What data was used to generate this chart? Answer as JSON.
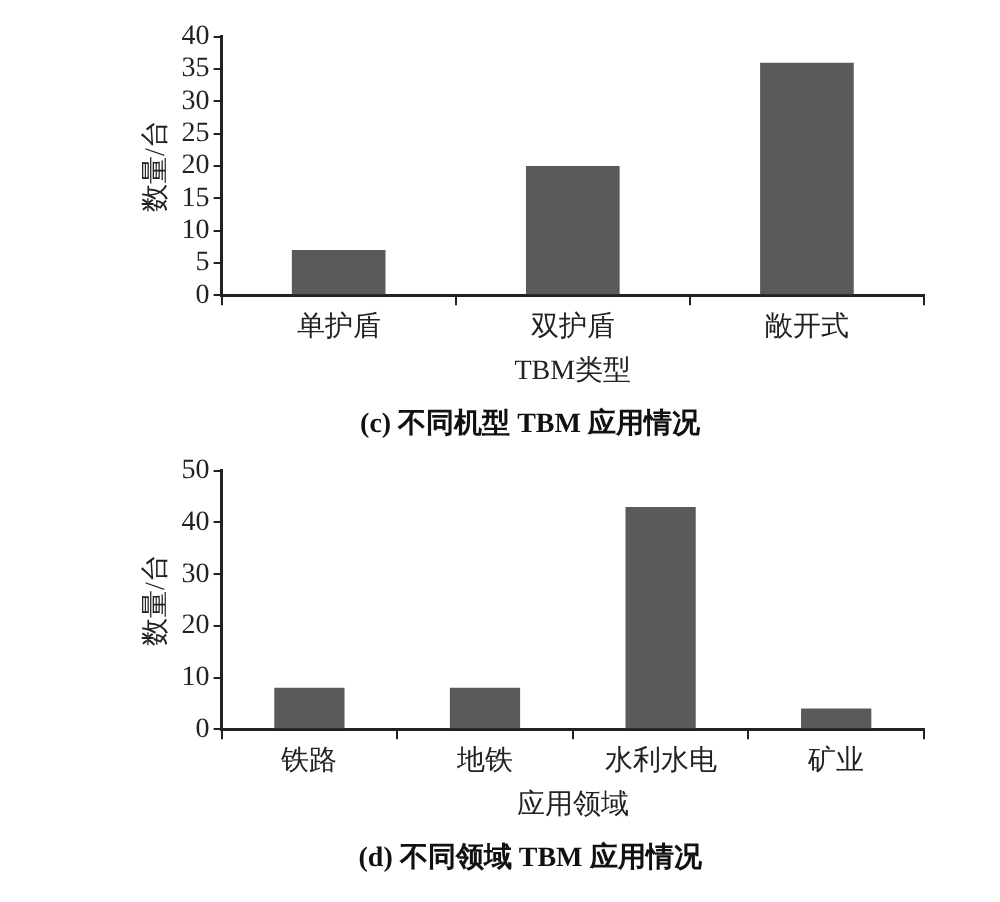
{
  "chart_data": [
    {
      "type": "bar",
      "title": "(c) 不同机型 TBM 应用情况",
      "xlabel": "TBM类型",
      "ylabel": "数量/台",
      "categories": [
        "单护盾",
        "双护盾",
        "敞开式"
      ],
      "values": [
        7,
        20,
        36
      ],
      "color": "#5a5a5a",
      "ylim": [
        0,
        40
      ],
      "yticks": [
        0,
        5,
        10,
        15,
        20,
        25,
        30,
        35,
        40
      ],
      "grid": false,
      "legend": false
    },
    {
      "type": "bar",
      "title": "(d) 不同领域 TBM 应用情况",
      "xlabel": "应用领域",
      "ylabel": "数量/台",
      "categories": [
        "铁路",
        "地铁",
        "水利水电",
        "矿业"
      ],
      "values": [
        8,
        8,
        43,
        4
      ],
      "color": "#5a5a5a",
      "ylim": [
        0,
        50
      ],
      "yticks": [
        0,
        10,
        20,
        30,
        40,
        50
      ],
      "grid": false,
      "legend": false
    }
  ]
}
